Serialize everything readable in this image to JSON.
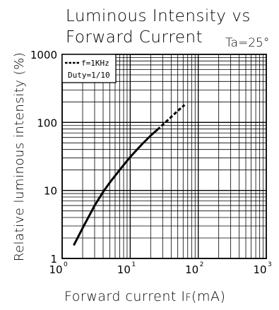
{
  "chart_data": {
    "type": "line",
    "title_line1": "Luminous Intensity vs",
    "title_line2": "Forward Current",
    "condition": "Ta=25°",
    "xlabel": "Forward current I",
    "xlabel_sub": "F",
    "xlabel_unit": "(mA)",
    "ylabel": "Relative luminous intensity (%)",
    "x_scale": "log",
    "y_scale": "log",
    "xlim": [
      1,
      1000
    ],
    "ylim": [
      1,
      1000
    ],
    "x_ticks": [
      {
        "base": "10",
        "exp": "0"
      },
      {
        "base": "10",
        "exp": "1"
      },
      {
        "base": "10",
        "exp": "2"
      },
      {
        "base": "10",
        "exp": "3"
      }
    ],
    "y_ticks": [
      "1",
      "10",
      "100",
      "1000"
    ],
    "grid": true,
    "legend": {
      "placement": "top-left",
      "line1": "f=1KHz",
      "line2": "Duty=1/10"
    },
    "series": [
      {
        "solid": {
          "x": [
            1.5,
            2,
            3,
            4,
            5,
            7,
            10,
            15,
            20,
            25
          ],
          "y": [
            1.6,
            2.8,
            6,
            9.5,
            13,
            20,
            31,
            48,
            64,
            78
          ]
        },
        "dashed": {
          "x": [
            25,
            30,
            40,
            50,
            63
          ],
          "y": [
            78,
            92,
            120,
            148,
            180
          ]
        }
      }
    ],
    "colors": {
      "line": "#000000",
      "grid": "#000000",
      "background": "#ffffff"
    }
  }
}
